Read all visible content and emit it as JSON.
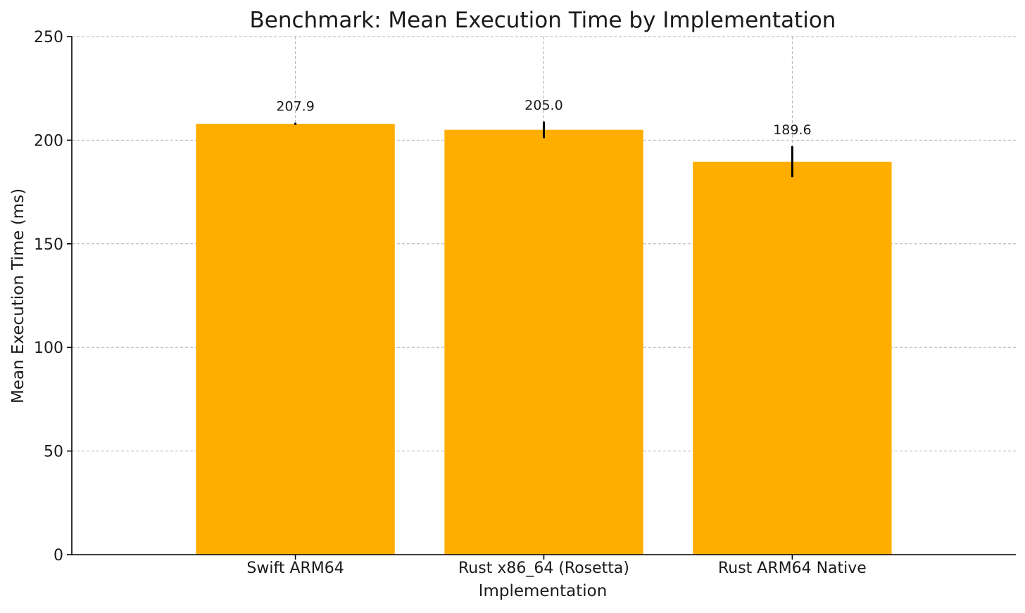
{
  "chart_data": {
    "type": "bar",
    "title": "Benchmark: Mean Execution Time by Implementation",
    "xlabel": "Implementation",
    "ylabel": "Mean Execution Time (ms)",
    "categories": [
      "Swift ARM64",
      "Rust x86_64 (Rosetta)",
      "Rust ARM64 Native"
    ],
    "values": [
      207.9,
      205.0,
      189.6
    ],
    "value_labels": [
      "207.9",
      "205.0",
      "189.6"
    ],
    "errors": [
      0.5,
      4.0,
      7.5
    ],
    "ylim": [
      0,
      250
    ],
    "yticks": [
      0,
      50,
      100,
      150,
      200,
      250
    ],
    "ytick_labels": [
      "0",
      "50",
      "100",
      "150",
      "200",
      "250"
    ],
    "grid": true,
    "bar_color": "#FFAE00",
    "error_color": "#000000"
  }
}
